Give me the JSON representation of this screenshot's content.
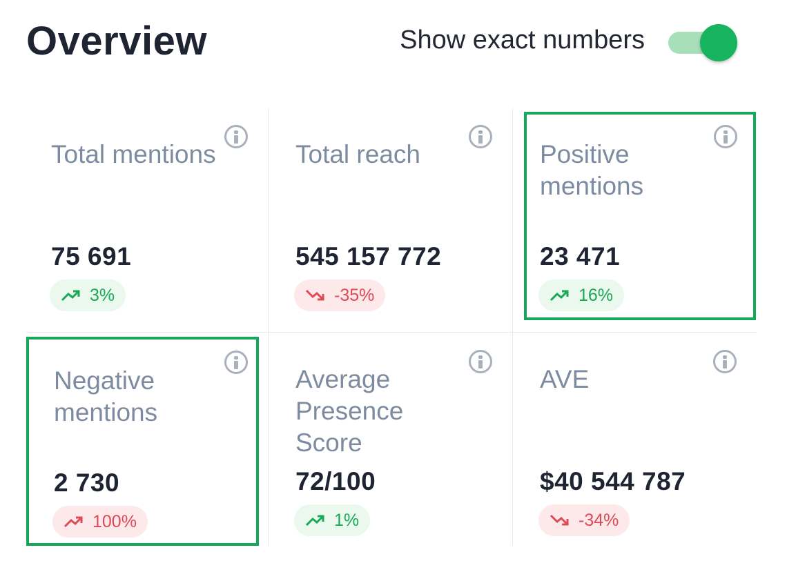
{
  "header": {
    "title": "Overview",
    "toggle_label": "Show exact numbers",
    "toggle_on": true
  },
  "colors": {
    "accent": "#16b45e",
    "highlight_border": "#16a85a",
    "positive": "#19a956",
    "negative": "#dd4a55"
  },
  "cards": [
    {
      "label": "Total mentions",
      "value": "75 691",
      "change": "3%",
      "trend": "up",
      "highlighted": false
    },
    {
      "label": "Total reach",
      "value": "545 157 772",
      "change": "-35%",
      "trend": "down",
      "highlighted": false
    },
    {
      "label": "Positive mentions",
      "value": "23 471",
      "change": "16%",
      "trend": "up",
      "highlighted": true
    },
    {
      "label": "Negative mentions",
      "value": "2 730",
      "change": "100%",
      "trend": "up-bad",
      "highlighted": true
    },
    {
      "label": "Average Presence Score",
      "value": "72/100",
      "change": "1%",
      "trend": "up",
      "highlighted": false
    },
    {
      "label": "AVE",
      "value": "$40 544 787",
      "change": "-34%",
      "trend": "down",
      "highlighted": false
    }
  ],
  "icons": {
    "info": "info-icon",
    "trend_up": "trend-up-icon",
    "trend_down": "trend-down-icon"
  }
}
